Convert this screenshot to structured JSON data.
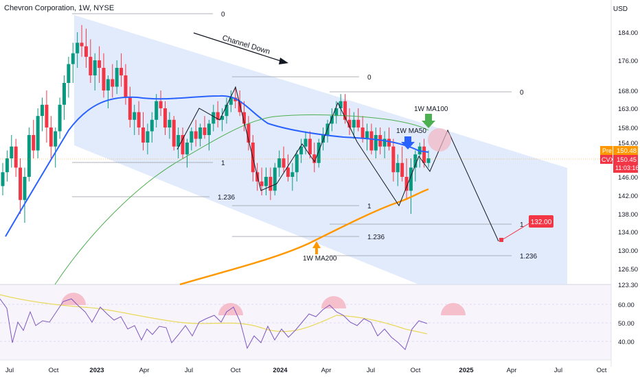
{
  "header": {
    "title": "Chevron Corporation, 1W, NYSE",
    "currency": "USD"
  },
  "colors": {
    "up": "#089981",
    "down": "#f23645",
    "ma50": "#2962ff",
    "ma100": "#4caf50",
    "ma200": "#ff9800",
    "channel": "#dbe6fb",
    "rsi": "#7e57c2",
    "rsi_ma": "#e8d95a",
    "rsi_band": "#ede7f6",
    "hump": "#f4b6c2"
  },
  "chart_data": {
    "type": "candlestick",
    "price_axis": {
      "ticks": [
        "184.00",
        "176.00",
        "168.00",
        "163.00",
        "158.00",
        "154.00",
        "150.00",
        "146.00",
        "142.00",
        "138.00",
        "134.00",
        "130.00",
        "126.50",
        "123.30"
      ],
      "pre_label": "Pre",
      "pre_value": "150.48",
      "last_label": "CVX",
      "last_value": "150.45",
      "countdown": "11:03:16"
    },
    "time_axis": [
      "Jul",
      "Oct",
      "2023",
      "Apr",
      "Jul",
      "Oct",
      "2024",
      "Apr",
      "Jul",
      "Oct",
      "2025",
      "Apr",
      "Jul",
      "Oct"
    ],
    "rsi_axis": [
      "60.00",
      "50.00",
      "40.00"
    ],
    "annotations": {
      "channel_label": "Channel Down",
      "ma100_label": "1W MA100",
      "ma50_label": "1W MA50",
      "ma200_label": "1W MA200",
      "target_value": "132.00"
    },
    "fib_labels": [
      "0",
      "1",
      "1.236",
      "0",
      "1",
      "1.236",
      "0",
      "1",
      "1.236"
    ],
    "candles": [
      [
        144,
        149,
        142,
        147
      ],
      [
        147,
        152,
        145,
        150
      ],
      [
        150,
        156,
        148,
        153
      ],
      [
        153,
        155,
        146,
        148
      ],
      [
        148,
        150,
        138,
        141
      ],
      [
        141,
        148,
        136,
        146
      ],
      [
        146,
        158,
        145,
        156
      ],
      [
        156,
        160,
        150,
        152
      ],
      [
        152,
        163,
        150,
        161
      ],
      [
        161,
        166,
        157,
        164
      ],
      [
        164,
        168,
        154,
        158
      ],
      [
        158,
        161,
        150,
        153
      ],
      [
        153,
        158,
        148,
        157
      ],
      [
        157,
        166,
        155,
        164
      ],
      [
        164,
        172,
        160,
        170
      ],
      [
        170,
        177,
        166,
        175
      ],
      [
        175,
        181,
        170,
        178
      ],
      [
        178,
        184,
        174,
        181
      ],
      [
        181,
        186,
        177,
        180
      ],
      [
        180,
        185,
        174,
        177
      ],
      [
        177,
        182,
        170,
        172
      ],
      [
        172,
        178,
        168,
        176
      ],
      [
        176,
        180,
        170,
        174
      ],
      [
        174,
        178,
        166,
        168
      ],
      [
        168,
        172,
        163,
        171
      ],
      [
        171,
        175,
        166,
        169
      ],
      [
        169,
        176,
        167,
        174
      ],
      [
        174,
        178,
        169,
        172
      ],
      [
        172,
        175,
        164,
        166
      ],
      [
        166,
        169,
        158,
        160
      ],
      [
        160,
        164,
        156,
        162
      ],
      [
        162,
        165,
        156,
        158
      ],
      [
        158,
        162,
        152,
        154
      ],
      [
        154,
        159,
        151,
        157
      ],
      [
        157,
        162,
        154,
        160
      ],
      [
        160,
        167,
        158,
        165
      ],
      [
        165,
        168,
        161,
        163
      ],
      [
        163,
        165,
        156,
        158
      ],
      [
        158,
        162,
        155,
        160
      ],
      [
        160,
        161,
        152,
        153
      ],
      [
        153,
        158,
        150,
        156
      ],
      [
        156,
        158,
        150,
        151
      ],
      [
        151,
        155,
        148,
        154
      ],
      [
        154,
        158,
        152,
        157
      ],
      [
        157,
        160,
        153,
        155
      ],
      [
        155,
        159,
        153,
        158
      ],
      [
        158,
        161,
        155,
        156
      ],
      [
        156,
        160,
        152,
        159
      ],
      [
        159,
        164,
        157,
        162
      ],
      [
        162,
        165,
        158,
        160
      ],
      [
        160,
        163,
        157,
        161
      ],
      [
        161,
        166,
        159,
        164
      ],
      [
        164,
        168,
        162,
        166
      ],
      [
        166,
        169,
        163,
        165
      ],
      [
        165,
        168,
        161,
        162
      ],
      [
        162,
        165,
        157,
        159
      ],
      [
        159,
        161,
        152,
        154
      ],
      [
        154,
        156,
        145,
        147
      ],
      [
        147,
        149,
        143,
        145
      ],
      [
        145,
        148,
        142,
        144
      ],
      [
        144,
        148,
        142,
        146
      ],
      [
        146,
        148,
        141,
        143
      ],
      [
        143,
        149,
        142,
        148
      ],
      [
        148,
        152,
        146,
        150
      ],
      [
        150,
        153,
        147,
        148
      ],
      [
        148,
        151,
        145,
        146
      ],
      [
        146,
        149,
        143,
        147
      ],
      [
        147,
        152,
        145,
        151
      ],
      [
        151,
        155,
        149,
        153
      ],
      [
        153,
        157,
        151,
        155
      ],
      [
        155,
        157,
        150,
        151
      ],
      [
        151,
        154,
        147,
        149
      ],
      [
        149,
        155,
        148,
        154
      ],
      [
        154,
        158,
        152,
        156
      ],
      [
        156,
        160,
        154,
        159
      ],
      [
        159,
        163,
        157,
        161
      ],
      [
        161,
        165,
        159,
        163
      ],
      [
        163,
        167,
        161,
        165
      ],
      [
        165,
        167,
        159,
        160
      ],
      [
        160,
        163,
        156,
        158
      ],
      [
        158,
        162,
        155,
        160
      ],
      [
        160,
        163,
        157,
        158
      ],
      [
        158,
        161,
        154,
        155
      ],
      [
        155,
        159,
        152,
        157
      ],
      [
        157,
        159,
        151,
        152
      ],
      [
        152,
        158,
        150,
        156
      ],
      [
        156,
        158,
        151,
        153
      ],
      [
        153,
        157,
        150,
        155
      ],
      [
        155,
        158,
        152,
        153
      ],
      [
        153,
        155,
        145,
        147
      ],
      [
        147,
        151,
        144,
        149
      ],
      [
        149,
        153,
        145,
        146
      ],
      [
        146,
        150,
        141,
        143
      ],
      [
        143,
        150,
        138,
        148
      ],
      [
        148,
        152,
        145,
        151
      ],
      [
        151,
        154,
        148,
        153
      ],
      [
        153,
        155,
        148,
        149
      ],
      [
        149,
        152,
        148,
        150
      ]
    ]
  }
}
